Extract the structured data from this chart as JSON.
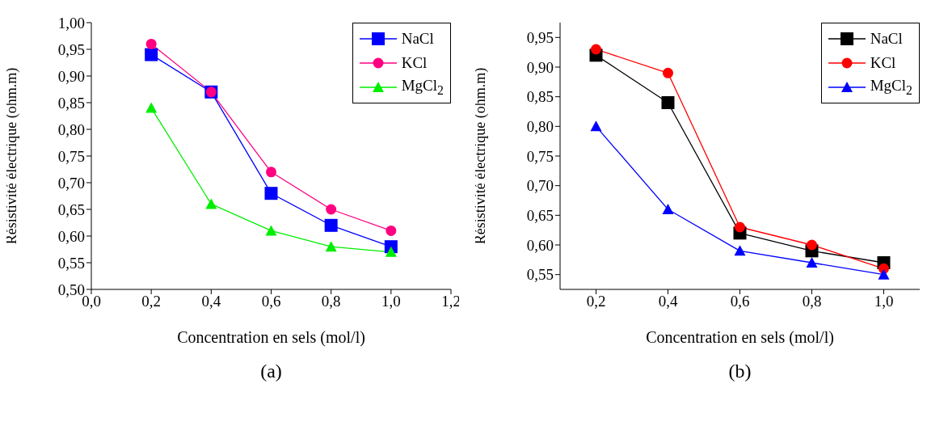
{
  "chart_data": [
    {
      "type": "line",
      "xlabel": "Concentration en sels (mol/l)",
      "ylabel": "Résistivité électrique (ohm.m)",
      "annotations": [
        "(a)"
      ],
      "x": [
        0.2,
        0.4,
        0.6,
        0.8,
        1.0
      ],
      "series": [
        {
          "name": "NaCl",
          "color": "#0000ff",
          "marker": "square",
          "values": [
            0.94,
            0.87,
            0.68,
            0.62,
            0.58
          ]
        },
        {
          "name": "KCl",
          "color": "#ff0080",
          "marker": "circle",
          "values": [
            0.96,
            0.87,
            0.72,
            0.65,
            0.61
          ]
        },
        {
          "name": "MgCl$_{2}$",
          "color": "#00ee00",
          "marker": "triangle",
          "values": [
            0.84,
            0.66,
            0.61,
            0.58,
            0.57
          ]
        }
      ],
      "xlim": [
        0.0,
        1.2
      ],
      "xticks": [
        {
          "value": 0.0,
          "label": "0,0"
        },
        {
          "value": 0.2,
          "label": "0,2"
        },
        {
          "value": 0.4,
          "label": "0,4"
        },
        {
          "value": 0.6,
          "label": "0,6"
        },
        {
          "value": 0.8,
          "label": "0,8"
        },
        {
          "value": 1.0,
          "label": "1,0"
        },
        {
          "value": 1.2,
          "label": "1,2"
        }
      ],
      "ylim": [
        0.5,
        1.0
      ],
      "yticks": [
        {
          "value": 0.5,
          "label": "0,50"
        },
        {
          "value": 0.55,
          "label": "0,55"
        },
        {
          "value": 0.6,
          "label": "0,60"
        },
        {
          "value": 0.65,
          "label": "0,65"
        },
        {
          "value": 0.7,
          "label": "0,70"
        },
        {
          "value": 0.75,
          "label": "0,75"
        },
        {
          "value": 0.8,
          "label": "0,80"
        },
        {
          "value": 0.85,
          "label": "0,85"
        },
        {
          "value": 0.9,
          "label": "0,90"
        },
        {
          "value": 0.95,
          "label": "0,95"
        },
        {
          "value": 1.0,
          "label": "1,00"
        }
      ],
      "legend": "top right"
    },
    {
      "type": "line",
      "xlabel": "Concentration en sels (mol/l)",
      "ylabel": "Résistivité électrique (ohm.m)",
      "annotations": [
        "(b)"
      ],
      "x": [
        0.2,
        0.4,
        0.6,
        0.8,
        1.0
      ],
      "series": [
        {
          "name": "NaCl",
          "color": "#000000",
          "marker": "square",
          "values": [
            0.92,
            0.84,
            0.62,
            0.59,
            0.57
          ]
        },
        {
          "name": "KCl",
          "color": "#ff0000",
          "marker": "circle",
          "values": [
            0.93,
            0.89,
            0.63,
            0.6,
            0.56
          ]
        },
        {
          "name": "MgCl$_{2}$",
          "color": "#0000ff",
          "marker": "triangle",
          "values": [
            0.8,
            0.66,
            0.59,
            0.57,
            0.55
          ]
        }
      ],
      "xlim": [
        0.1,
        1.1
      ],
      "xticks": [
        {
          "value": 0.2,
          "label": "0,2"
        },
        {
          "value": 0.4,
          "label": "0,4"
        },
        {
          "value": 0.6,
          "label": "0,6"
        },
        {
          "value": 0.8,
          "label": "0,8"
        },
        {
          "value": 1.0,
          "label": "1,0"
        }
      ],
      "ylim": [
        0.525,
        0.975
      ],
      "yticks": [
        {
          "value": 0.55,
          "label": "0,55"
        },
        {
          "value": 0.6,
          "label": "0,60"
        },
        {
          "value": 0.65,
          "label": "0,65"
        },
        {
          "value": 0.7,
          "label": "0,70"
        },
        {
          "value": 0.75,
          "label": "0,75"
        },
        {
          "value": 0.8,
          "label": "0,80"
        },
        {
          "value": 0.85,
          "label": "0,85"
        },
        {
          "value": 0.9,
          "label": "0,90"
        },
        {
          "value": 0.95,
          "label": "0,95"
        }
      ],
      "legend": "top right"
    }
  ]
}
